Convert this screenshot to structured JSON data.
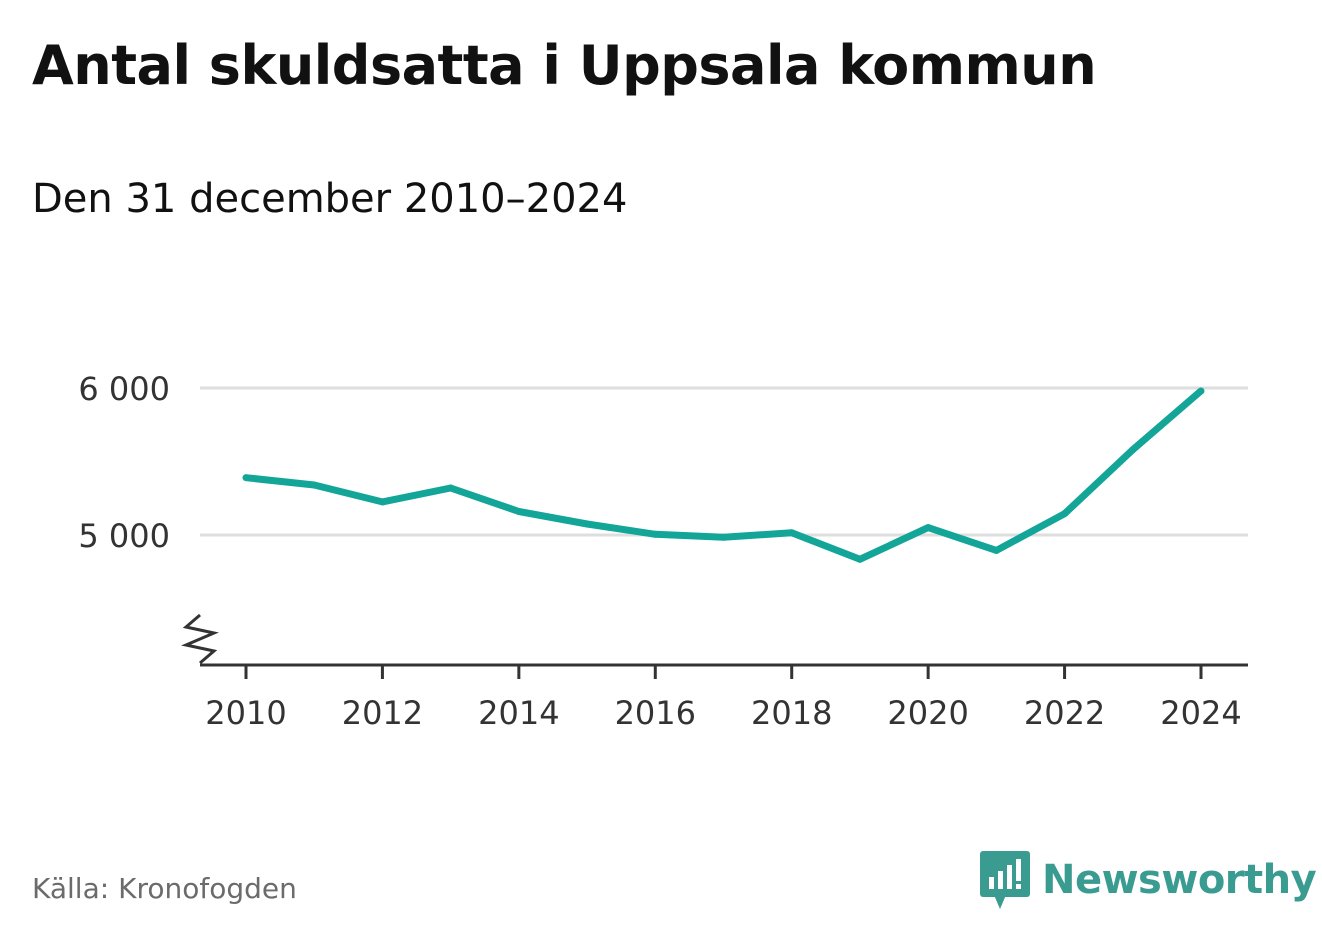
{
  "header": {
    "title": "Antal skuldsatta i Uppsala kommun",
    "subtitle": "Den 31 december 2010–2024"
  },
  "footer": {
    "source": "Källa: Kronofogden",
    "brand": "Newsworthy",
    "brand_icon": "bar-chart-speech-bubble-icon",
    "brand_color": "#3a9b91"
  },
  "chart_data": {
    "type": "line",
    "x": [
      2010,
      2011,
      2012,
      2013,
      2014,
      2015,
      2016,
      2017,
      2018,
      2019,
      2020,
      2021,
      2022,
      2023,
      2024
    ],
    "series": [
      {
        "values": [
          5390,
          5340,
          5225,
          5320,
          5160,
          5075,
          5005,
          4985,
          5015,
          4835,
          5050,
          4895,
          5145,
          5580,
          5980
        ],
        "color": "#13a598"
      }
    ],
    "xticks": [
      2010,
      2012,
      2014,
      2016,
      2018,
      2020,
      2022,
      2024
    ],
    "xtick_labels": [
      "2010",
      "2012",
      "2014",
      "2016",
      "2018",
      "2020",
      "2022",
      "2024"
    ],
    "yticks": [
      5000,
      6000
    ],
    "ytick_labels": [
      "5 000",
      "6 000"
    ],
    "ylim": [
      4100,
      6100
    ],
    "y_axis_break": true,
    "grid": true,
    "xlabel": "",
    "ylabel": ""
  }
}
